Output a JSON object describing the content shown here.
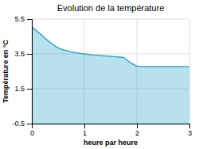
{
  "chart_data": {
    "type": "area",
    "title": "Evolution de la température",
    "xlabel": "heure par heure",
    "ylabel": "Température en °C",
    "x": [
      0,
      0.08,
      0.17,
      0.25,
      0.33,
      0.42,
      0.5,
      0.58,
      0.67,
      0.75,
      0.83,
      0.92,
      1.0,
      1.08,
      1.17,
      1.25,
      1.33,
      1.42,
      1.5,
      1.58,
      1.67,
      1.75,
      1.83,
      1.92,
      2.0,
      2.08,
      2.17,
      2.25,
      2.33,
      2.42,
      2.5,
      2.58,
      2.67,
      2.75,
      2.83,
      2.92,
      3.0
    ],
    "values": [
      5.05,
      4.85,
      4.62,
      4.4,
      4.2,
      4.0,
      3.85,
      3.75,
      3.68,
      3.62,
      3.57,
      3.53,
      3.5,
      3.47,
      3.44,
      3.42,
      3.4,
      3.38,
      3.36,
      3.34,
      3.32,
      3.3,
      3.1,
      2.92,
      2.8,
      2.78,
      2.77,
      2.77,
      2.77,
      2.77,
      2.77,
      2.77,
      2.77,
      2.77,
      2.77,
      2.77,
      2.77
    ],
    "color": "#33aacc",
    "xlim": [
      0,
      3
    ],
    "ylim": [
      -0.5,
      5.5
    ],
    "xticks": [
      0,
      1,
      2,
      3
    ],
    "yticks": [
      -0.5,
      1.5,
      3.5,
      5.5
    ],
    "grid": true
  }
}
